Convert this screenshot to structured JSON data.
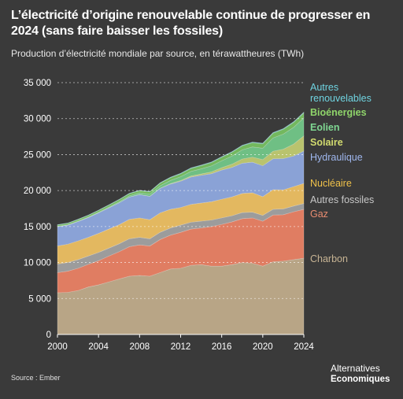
{
  "title": "L’électricité d’origine renouvelable continue de progresser en 2024 (sans faire baisser les fossiles)",
  "subtitle": "Production d’électricité mondiale par source, en térawattheures (TWh)",
  "source": "Source : Ember",
  "logo": {
    "line1": "Alternatives",
    "line2": "Economiques"
  },
  "chart_data": {
    "type": "area",
    "stacked": true,
    "x": [
      2000,
      2001,
      2002,
      2003,
      2004,
      2005,
      2006,
      2007,
      2008,
      2009,
      2010,
      2011,
      2012,
      2013,
      2014,
      2015,
      2016,
      2017,
      2018,
      2019,
      2020,
      2021,
      2022,
      2023,
      2024
    ],
    "xticks": [
      "2000",
      "2004",
      "2008",
      "2012",
      "2016",
      "2020",
      "2024"
    ],
    "ylim": [
      0,
      35000
    ],
    "yticks": [
      "0",
      "5 000",
      "10 000",
      "15 000",
      "20 000",
      "25 000",
      "30 000",
      "35 000"
    ],
    "ytick_values": [
      0,
      5000,
      10000,
      15000,
      20000,
      25000,
      30000,
      35000
    ],
    "grid": "horizontal-dashed",
    "legend": "right-inline",
    "series": [
      {
        "name": "Charbon",
        "color": "#b8a586",
        "values": [
          5800,
          5850,
          6100,
          6600,
          6900,
          7300,
          7700,
          8100,
          8200,
          8100,
          8600,
          9100,
          9200,
          9600,
          9700,
          9500,
          9500,
          9700,
          10000,
          9900,
          9500,
          10100,
          10200,
          10400,
          10600
        ]
      },
      {
        "name": "Gaz",
        "color": "#e07d62",
        "values": [
          2800,
          2950,
          3100,
          3150,
          3350,
          3600,
          3800,
          4100,
          4250,
          4200,
          4600,
          4700,
          5000,
          5050,
          5100,
          5500,
          5800,
          5950,
          6100,
          6300,
          6250,
          6500,
          6450,
          6650,
          6800
        ]
      },
      {
        "name": "Autres fossiles",
        "color": "#9c9c9c",
        "values": [
          1200,
          1200,
          1200,
          1150,
          1150,
          1100,
          1100,
          1100,
          1050,
          1000,
          1000,
          1000,
          1000,
          950,
          950,
          900,
          900,
          850,
          850,
          800,
          800,
          800,
          800,
          800,
          800
        ]
      },
      {
        "name": "Nucléaire",
        "color": "#e3b860",
        "values": [
          2500,
          2550,
          2600,
          2600,
          2650,
          2650,
          2650,
          2700,
          2700,
          2650,
          2700,
          2600,
          2450,
          2480,
          2520,
          2550,
          2600,
          2620,
          2650,
          2700,
          2600,
          2720,
          2650,
          2700,
          2800
        ]
      },
      {
        "name": "Hydraulique",
        "color": "#8aa2d6",
        "values": [
          2700,
          2650,
          2700,
          2750,
          2850,
          2950,
          3050,
          3100,
          3250,
          3250,
          3400,
          3500,
          3650,
          3800,
          3850,
          3900,
          4050,
          4100,
          4200,
          4250,
          4300,
          4300,
          4350,
          4250,
          4500
        ]
      },
      {
        "name": "Solaire",
        "color": "#b9c36e",
        "values": [
          1,
          1,
          2,
          2,
          3,
          4,
          6,
          8,
          12,
          20,
          32,
          64,
          100,
          140,
          190,
          250,
          330,
          450,
          590,
          700,
          850,
          1050,
          1300,
          1650,
          2100
        ]
      },
      {
        "name": "Eolien",
        "color": "#6fbf84",
        "values": [
          30,
          40,
          52,
          63,
          85,
          100,
          130,
          170,
          220,
          280,
          340,
          440,
          530,
          640,
          710,
          830,
          960,
          1130,
          1270,
          1420,
          1590,
          1850,
          2100,
          2330,
          2500
        ]
      },
      {
        "name": "Bioénergies",
        "color": "#73b85e",
        "values": [
          190,
          200,
          210,
          230,
          240,
          260,
          280,
          290,
          300,
          320,
          350,
          380,
          400,
          420,
          450,
          470,
          500,
          530,
          560,
          590,
          610,
          650,
          670,
          690,
          700
        ]
      },
      {
        "name": "Autres\nrenouvelables",
        "color": "#5bbcc9",
        "values": [
          50,
          52,
          54,
          56,
          58,
          60,
          62,
          64,
          66,
          68,
          70,
          72,
          74,
          76,
          78,
          80,
          82,
          84,
          86,
          88,
          90,
          92,
          94,
          96,
          100
        ]
      }
    ],
    "legend_colors": {
      "Charbon": "#c7b494",
      "Gaz": "#e98c70",
      "Autres fossiles": "#c8c8c8",
      "Nucléaire": "#f0c24a",
      "Hydraulique": "#9fb7ee",
      "Solaire": "#d2db6f",
      "Eolien": "#7fd792",
      "Bioénergies": "#8fd46a",
      "Autres\nrenouvelables": "#6fd3e0"
    }
  }
}
